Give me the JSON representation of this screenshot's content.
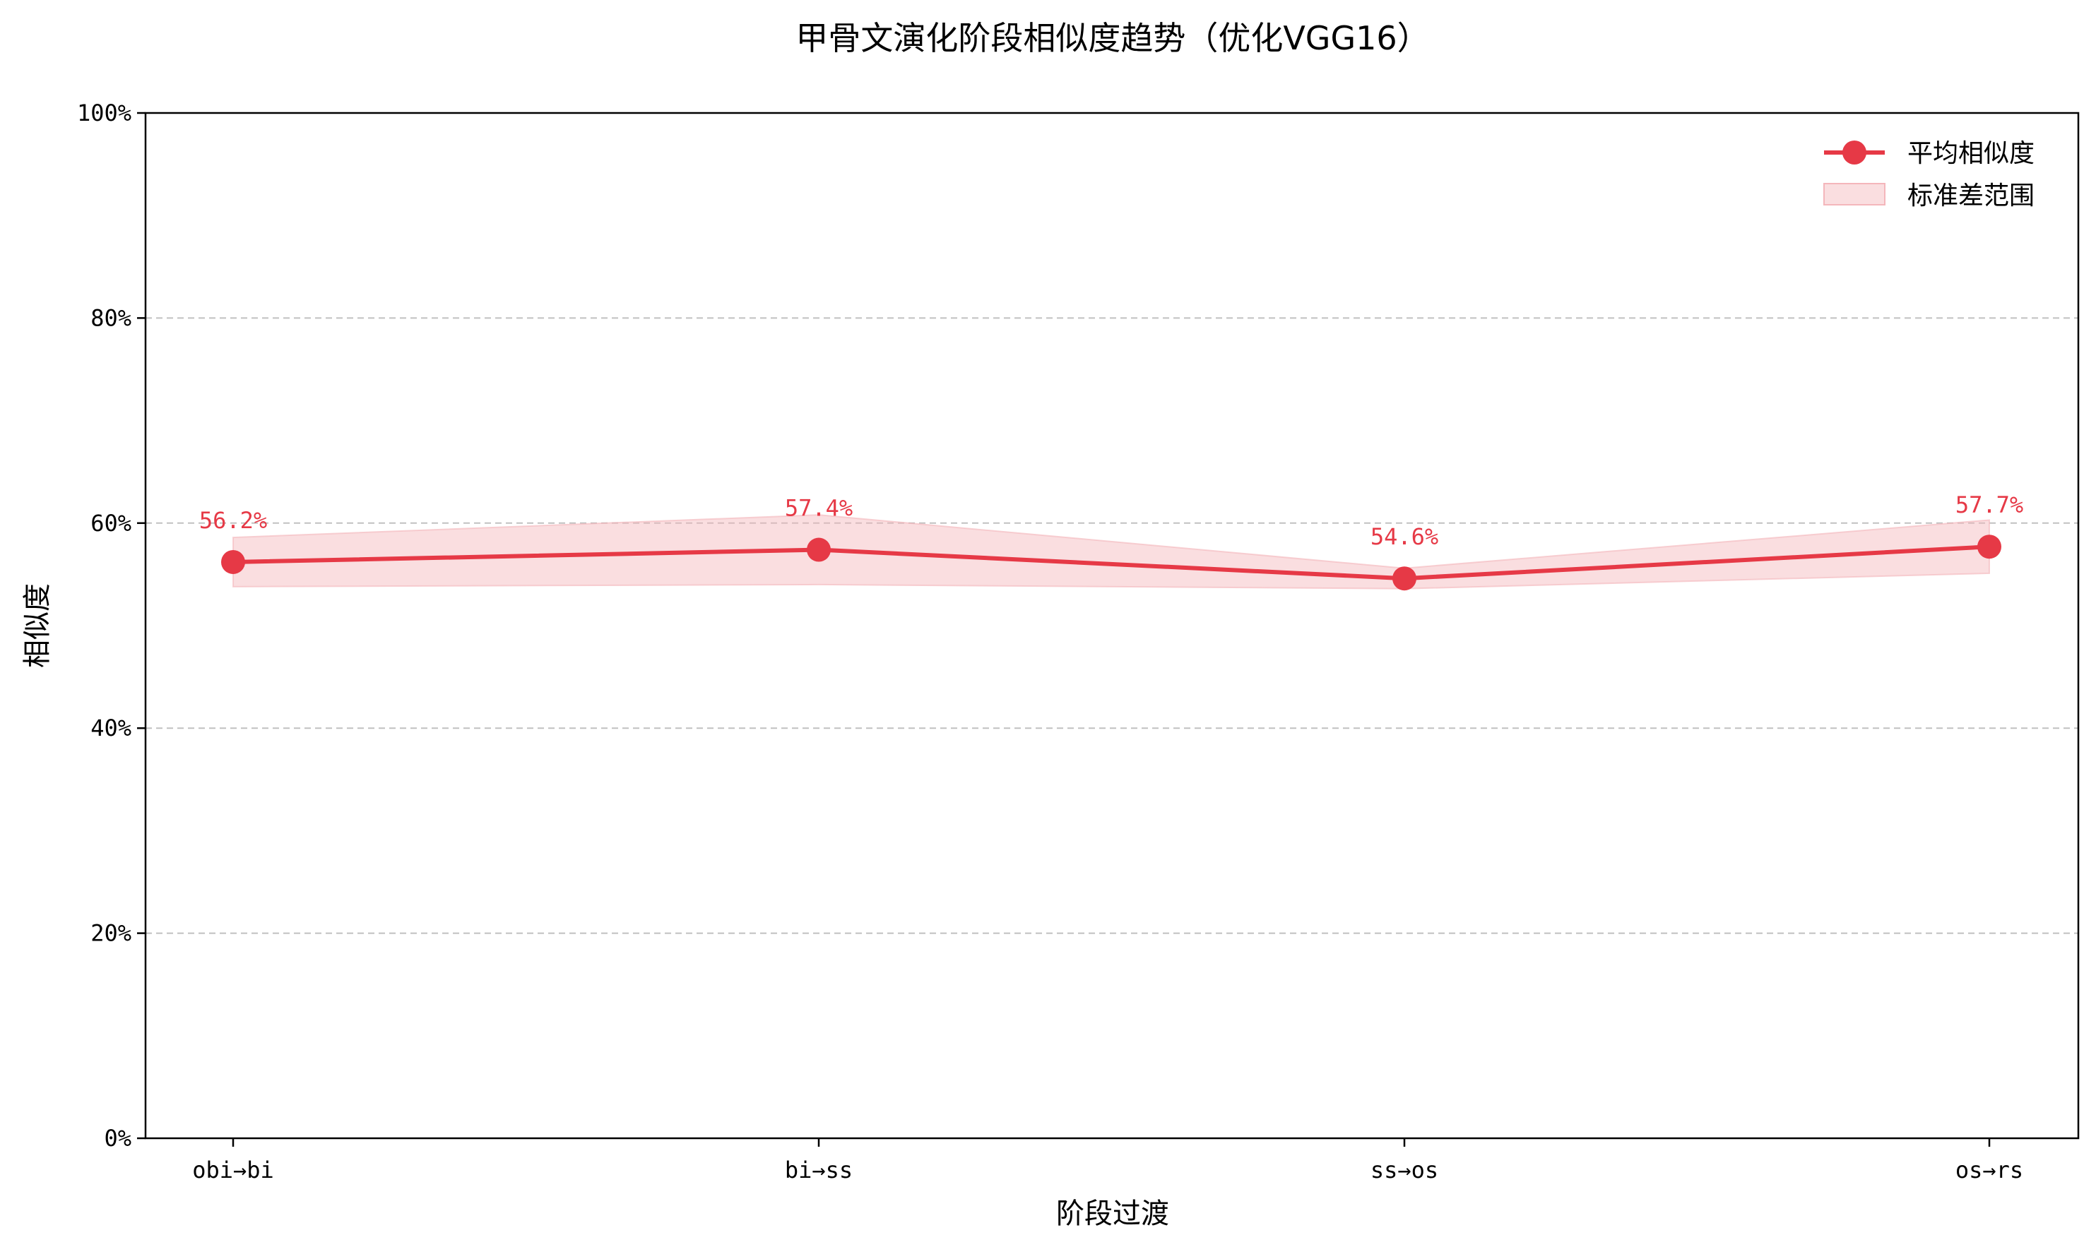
{
  "chart_data": {
    "type": "line",
    "title": "甲骨文演化阶段相似度趋势（优化VGG16）",
    "xlabel": "阶段过渡",
    "ylabel": "相似度",
    "categories": [
      "obi→bi",
      "bi→ss",
      "ss→os",
      "os→rs"
    ],
    "ylim": [
      0,
      100
    ],
    "yticks": [
      "0%",
      "20%",
      "40%",
      "60%",
      "80%",
      "100%"
    ],
    "ytick_values": [
      0,
      20,
      40,
      60,
      80,
      100
    ],
    "grid": "y-dashed",
    "legend_position": "top-right",
    "series": [
      {
        "name": "平均相似度",
        "values": [
          56.2,
          57.4,
          54.6,
          57.7
        ],
        "labels": [
          "56.2%",
          "57.4%",
          "54.6%",
          "57.7%"
        ],
        "color": "#e63946"
      }
    ],
    "band": {
      "name": "标准差范围",
      "upper": [
        58.6,
        60.8,
        55.6,
        60.3
      ],
      "lower": [
        53.8,
        54.0,
        53.6,
        55.1
      ],
      "color": "#f4b6bb"
    }
  }
}
